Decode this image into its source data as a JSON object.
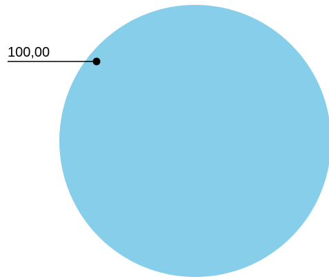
{
  "chart_data": {
    "type": "pie",
    "slices": [
      {
        "value": 100,
        "label": "100,00",
        "color": "#87CEEB"
      }
    ],
    "leader_color": "#000000"
  }
}
